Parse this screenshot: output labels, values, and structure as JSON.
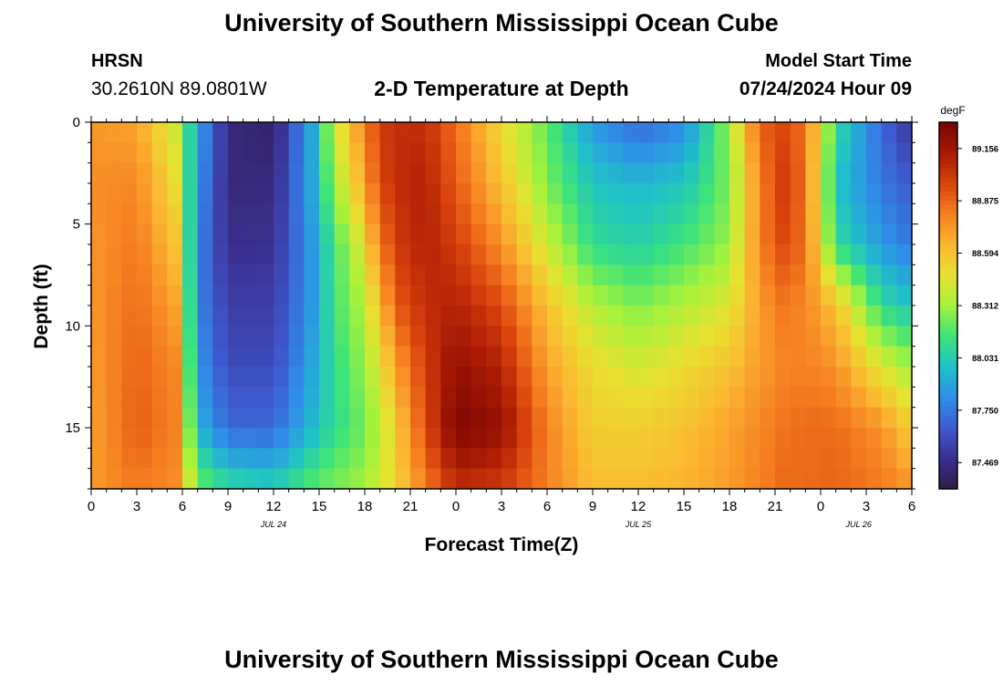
{
  "header": {
    "title": "University of Southern Mississippi Ocean Cube",
    "station": "HRSN",
    "coords": "30.2610N  89.0801W",
    "subtitle": "2-D Temperature at Depth",
    "model_start_label": "Model Start Time",
    "model_start_value": "07/24/2024 Hour 09"
  },
  "footer": {
    "title": "University of Southern Mississippi Ocean Cube"
  },
  "chart_data": {
    "type": "heatmap",
    "xlabel": "Forecast Time(Z)",
    "ylabel": "Depth (ft)",
    "x_tick_labels": [
      "0",
      "3",
      "6",
      "9",
      "12",
      "15",
      "18",
      "21",
      "0",
      "3",
      "6",
      "9",
      "12",
      "15",
      "18",
      "21",
      "0",
      "3",
      "6"
    ],
    "x_range_hours": [
      0,
      54
    ],
    "date_labels": [
      {
        "label": "JUL 24",
        "hour": 12
      },
      {
        "label": "JUL 25",
        "hour": 36
      },
      {
        "label": "JUL 26",
        "hour": 50.5
      }
    ],
    "y_ticks": [
      0,
      5,
      10,
      15
    ],
    "y_range_ft": [
      0,
      18
    ],
    "colorbar": {
      "unit": "degF",
      "min": 87.328,
      "max": 89.297,
      "tick_labels": [
        "89.156",
        "88.875",
        "88.594",
        "88.312",
        "88.031",
        "87.750",
        "87.469"
      ],
      "tick_values": [
        89.156,
        88.875,
        88.594,
        88.312,
        88.031,
        87.75,
        87.469
      ],
      "colors": [
        "#2e1a47",
        "#3b2f8f",
        "#3e5ad0",
        "#2f8fe8",
        "#1fc1c8",
        "#3de37a",
        "#a4f23b",
        "#e8e130",
        "#fbb731",
        "#f67f20",
        "#d9440d",
        "#a81a04",
        "#7a0403"
      ]
    },
    "grid": {
      "nx": 54,
      "ny": 18,
      "x_start_hour": 0.5,
      "dx_hours": 1,
      "y_start_ft": 0.5,
      "dy_ft": 1,
      "profile_hours": [
        0,
        3,
        5.5,
        7,
        9,
        12,
        14.5,
        16,
        17.5,
        19,
        20,
        22,
        24,
        27,
        30,
        33,
        36,
        39,
        42,
        44,
        45.5,
        47,
        49,
        52,
        54
      ],
      "profile_depths_ft": [
        0,
        3,
        6,
        9,
        12,
        15,
        18
      ],
      "profile_values_degF": [
        [
          88.73,
          88.76,
          88.74,
          88.73,
          88.72,
          88.7,
          88.72
        ],
        [
          88.7,
          88.78,
          88.82,
          88.86,
          88.88,
          88.9,
          88.82
        ],
        [
          88.4,
          88.5,
          88.6,
          88.7,
          88.78,
          88.8,
          88.76
        ],
        [
          87.9,
          87.85,
          87.8,
          87.8,
          87.85,
          87.95,
          88.25
        ],
        [
          87.45,
          87.45,
          87.48,
          87.55,
          87.6,
          87.7,
          88.1
        ],
        [
          87.4,
          87.45,
          87.5,
          87.55,
          87.6,
          87.7,
          88.05
        ],
        [
          87.9,
          87.9,
          87.85,
          87.85,
          87.9,
          87.95,
          88.2
        ],
        [
          88.4,
          88.3,
          88.15,
          88.15,
          88.1,
          88.1,
          88.25
        ],
        [
          88.7,
          88.6,
          88.4,
          88.3,
          88.25,
          88.2,
          88.3
        ],
        [
          89.0,
          88.95,
          88.8,
          88.6,
          88.45,
          88.35,
          88.4
        ],
        [
          89.05,
          89.05,
          89.0,
          88.9,
          88.7,
          88.55,
          88.55
        ],
        [
          89.05,
          89.1,
          89.1,
          89.05,
          89.0,
          88.95,
          88.8
        ],
        [
          88.85,
          88.9,
          89.0,
          89.1,
          89.2,
          89.28,
          89.05
        ],
        [
          88.5,
          88.6,
          88.75,
          88.95,
          89.1,
          89.2,
          89.0
        ],
        [
          88.2,
          88.25,
          88.4,
          88.6,
          88.7,
          88.8,
          88.8
        ],
        [
          87.85,
          88.0,
          88.1,
          88.35,
          88.5,
          88.55,
          88.62
        ],
        [
          87.7,
          87.95,
          88.05,
          88.25,
          88.42,
          88.55,
          88.62
        ],
        [
          87.8,
          88.0,
          88.15,
          88.35,
          88.5,
          88.6,
          88.65
        ],
        [
          88.3,
          88.25,
          88.3,
          88.45,
          88.6,
          88.7,
          88.72
        ],
        [
          88.9,
          88.8,
          88.8,
          88.72,
          88.72,
          88.78,
          88.8
        ],
        [
          88.95,
          89.0,
          88.95,
          88.82,
          88.78,
          88.84,
          88.86
        ],
        [
          88.85,
          88.85,
          88.85,
          88.78,
          88.8,
          88.86,
          88.86
        ],
        [
          88.1,
          88.0,
          88.1,
          88.6,
          88.75,
          88.86,
          88.88
        ],
        [
          87.7,
          87.75,
          87.85,
          88.1,
          88.45,
          88.75,
          88.82
        ],
        [
          87.5,
          87.65,
          87.75,
          88.0,
          88.3,
          88.55,
          88.74
        ]
      ]
    }
  }
}
